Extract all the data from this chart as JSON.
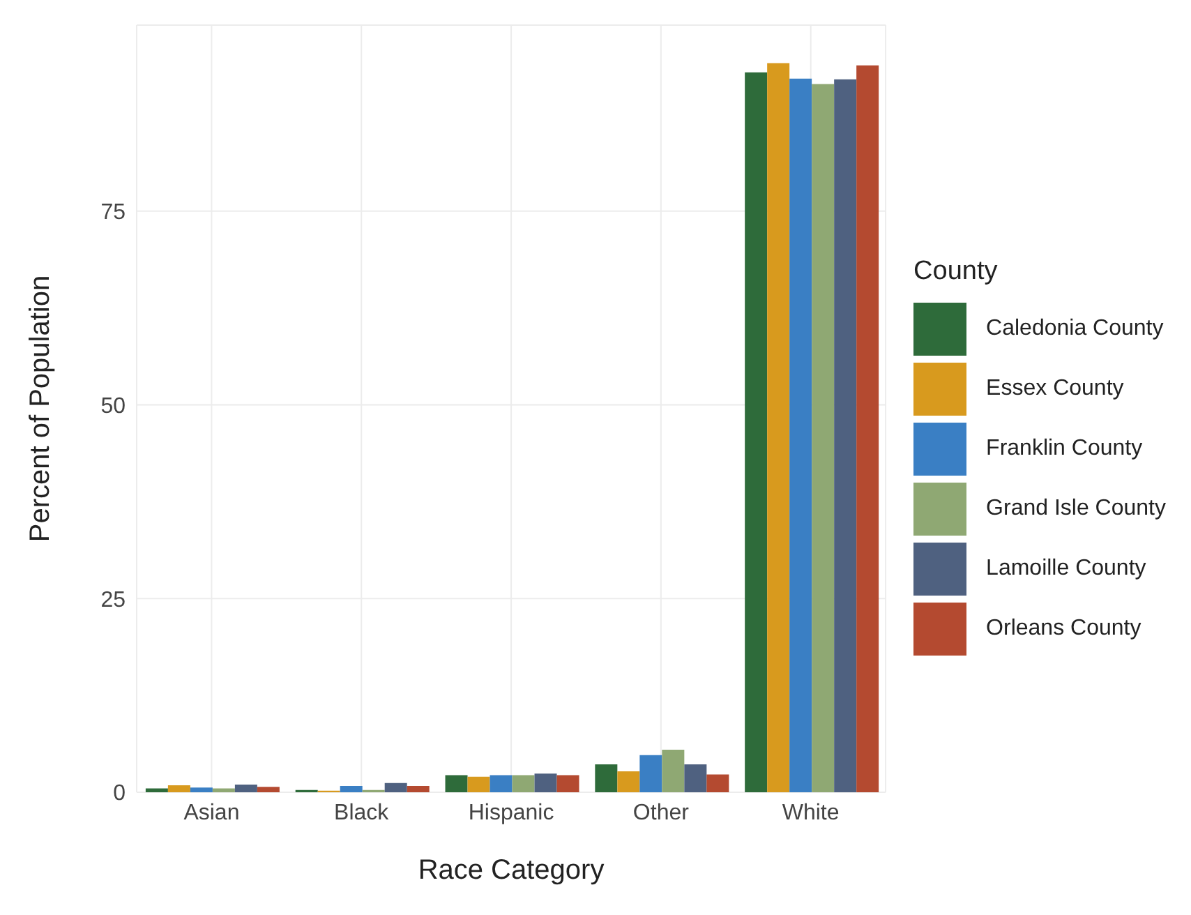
{
  "chart_data": {
    "type": "bar",
    "xlabel": "Race Category",
    "ylabel": "Percent of Population",
    "legend_title": "County",
    "categories": [
      "Asian",
      "Black",
      "Hispanic",
      "Other",
      "White"
    ],
    "series": [
      {
        "name": "Caledonia County",
        "color": "#2e6b3a",
        "values": [
          0.5,
          0.3,
          2.2,
          3.6,
          92.9
        ]
      },
      {
        "name": "Essex County",
        "color": "#d89a1e",
        "values": [
          0.9,
          0.2,
          2.0,
          2.7,
          94.1
        ]
      },
      {
        "name": "Franklin County",
        "color": "#3a7fc4",
        "values": [
          0.6,
          0.8,
          2.2,
          4.8,
          92.1
        ]
      },
      {
        "name": "Grand Isle County",
        "color": "#8fa873",
        "values": [
          0.5,
          0.3,
          2.2,
          5.5,
          91.4
        ]
      },
      {
        "name": "Lamoille County",
        "color": "#4f6180",
        "values": [
          1.0,
          1.2,
          2.4,
          3.6,
          92.0
        ]
      },
      {
        "name": "Orleans County",
        "color": "#b44a30",
        "values": [
          0.7,
          0.8,
          2.2,
          2.3,
          93.8
        ]
      }
    ],
    "ylim": [
      0,
      99
    ],
    "yticks": [
      0,
      25,
      50,
      75
    ],
    "grid": true,
    "legend": "right"
  }
}
